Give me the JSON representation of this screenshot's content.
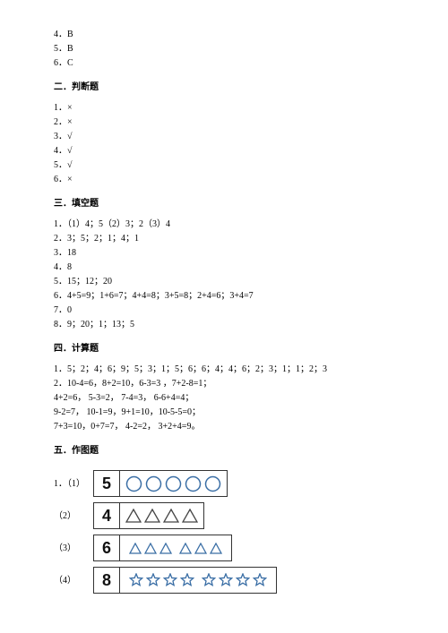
{
  "top_answers": [
    "4．B",
    "5．B",
    "6．C"
  ],
  "section2": {
    "title": "二．判断题",
    "items": [
      "1．×",
      "2．×",
      "3．√",
      "4．√",
      "5．√",
      "6．×"
    ]
  },
  "section3": {
    "title": "三．填空题",
    "items": [
      "1．（1）4；5（2）3；2（3）4",
      "2．3；5；2；1；4；1",
      "3．18",
      "4．8",
      "5．15；12；20",
      "6．4+5=9；1+6=7；4+4=8；3+5=8；2+4=6；3+4=7",
      "7．0",
      "8．9；20；1；13；5"
    ]
  },
  "section4": {
    "title": "四．计算题",
    "items": [
      "1．5；2；4；6；9；5；3；1；5；6；6；4；4；6；2；3；1；1；2；3",
      "2．10-4=6，8+2=10，6-3=3 ，7+2-8=1；",
      "4+2=6， 5-3=2， 7-4=3， 6-6+4=4；",
      "9-2=7， 10-1=9，9+1=10，10-5-5=0；",
      "7+3=10，0+7=7， 4-2=2， 3+2+4=9。"
    ]
  },
  "section5": {
    "title": "五．作图题",
    "figures": {
      "row1": {
        "label": "1．（1）",
        "number": "5",
        "count": 5
      },
      "row2": {
        "label": "（2）",
        "number": "4",
        "count": 4
      },
      "row3": {
        "label": "（3）",
        "number": "6",
        "groupA": 3,
        "groupB": 3
      },
      "row4": {
        "label": "（4）",
        "number": "8",
        "groupA": 4,
        "groupB": 4
      }
    }
  },
  "colors": {
    "circle_stroke": "#3a6ea5",
    "triangle_stroke": "#444444",
    "small_tri_stroke": "#3a6ea5",
    "star_stroke": "#3a6ea5",
    "text": "#000000",
    "bg": "#ffffff"
  },
  "sizes": {
    "circle_r": 8,
    "triangle_w": 18,
    "triangle_h": 16,
    "small_tri_w": 14,
    "small_tri_h": 13,
    "star_w": 16,
    "star_h": 16
  }
}
